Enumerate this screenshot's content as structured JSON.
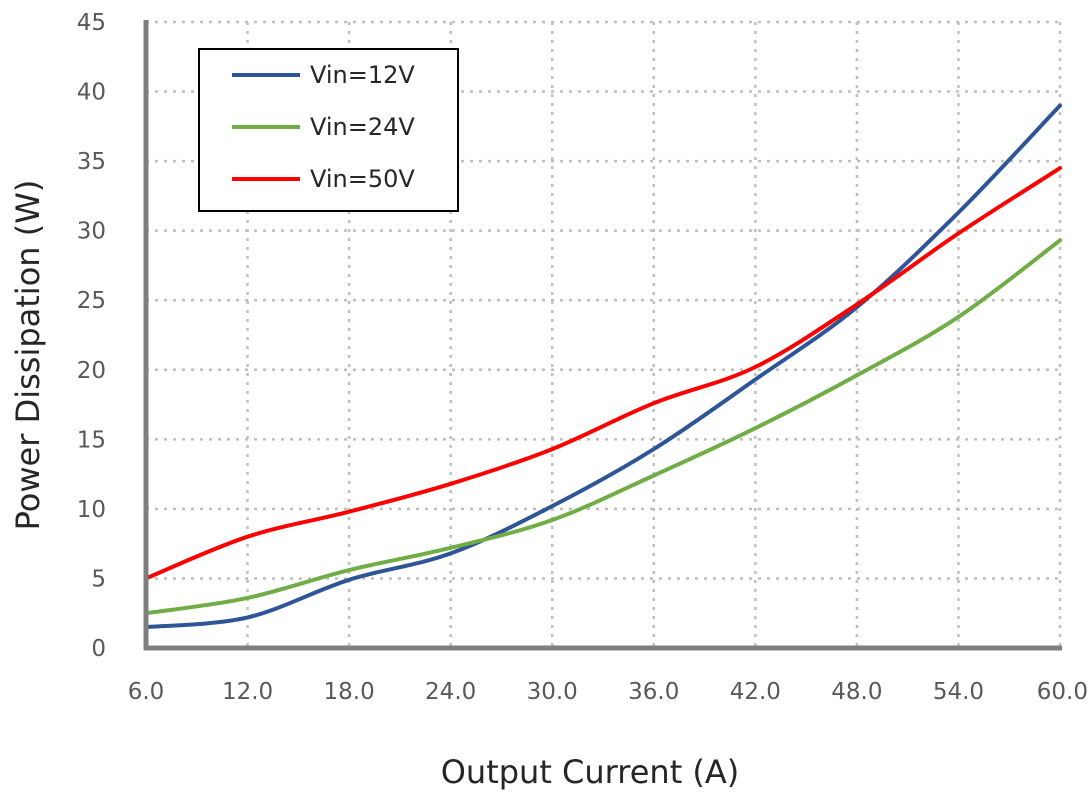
{
  "chart_data": {
    "type": "line",
    "xlabel": "Output Current (A)",
    "ylabel": "Power Dissipation (W)",
    "x": [
      6.0,
      12.0,
      18.0,
      24.0,
      30.0,
      36.0,
      42.0,
      48.0,
      54.0,
      60.0
    ],
    "x_tick_labels": [
      "6.0",
      "12.0",
      "18.0",
      "24.0",
      "30.0",
      "36.0",
      "42.0",
      "48.0",
      "54.0",
      "60.0"
    ],
    "y_ticks": [
      0,
      5,
      10,
      15,
      20,
      25,
      30,
      35,
      40,
      45
    ],
    "y_tick_labels": [
      "0",
      "5",
      "10",
      "15",
      "20",
      "25",
      "30",
      "35",
      "40",
      "45"
    ],
    "xlim": [
      6.0,
      60.0
    ],
    "ylim": [
      0,
      45
    ],
    "grid": true,
    "legend_position": "top-left",
    "series": [
      {
        "name": "Vin=12V",
        "color": "#2e5597",
        "values": [
          1.5,
          2.2,
          4.9,
          6.8,
          10.2,
          14.3,
          19.3,
          24.5,
          31.3,
          39.0
        ]
      },
      {
        "name": "Vin=24V",
        "color": "#70ad47",
        "values": [
          2.5,
          3.6,
          5.6,
          7.2,
          9.2,
          12.4,
          15.8,
          19.6,
          23.8,
          29.3
        ]
      },
      {
        "name": "Vin=50V",
        "color": "#ff0000",
        "values": [
          5.0,
          8.0,
          9.8,
          11.8,
          14.3,
          17.6,
          20.2,
          24.7,
          29.8,
          34.5
        ]
      }
    ]
  }
}
